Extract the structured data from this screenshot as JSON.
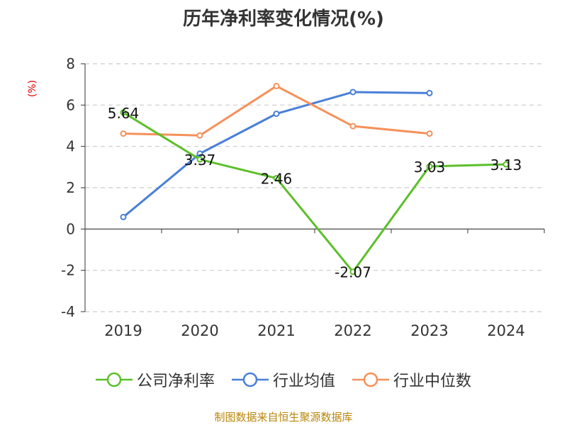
{
  "title": "历年净利率变化情况(%)",
  "unit": "(%)",
  "source": "制图数据来自恒生聚源数据库",
  "chart_data": {
    "type": "line",
    "title": "历年净利率变化情况(%)",
    "ylabel": "(%)",
    "xlabel": "",
    "categories": [
      "2019",
      "2020",
      "2021",
      "2022",
      "2023",
      "2024"
    ],
    "ylim": [
      -4,
      8
    ],
    "yticks": [
      -4,
      -2,
      0,
      2,
      4,
      6,
      8
    ],
    "grid": true,
    "legend": "bottom",
    "series": [
      {
        "name": "公司净利率",
        "color": "#5cbf2a",
        "values": [
          5.64,
          3.37,
          2.46,
          -2.07,
          3.03,
          3.13
        ],
        "labels": [
          "5.64",
          "3.37",
          "2.46",
          "-2.07",
          "3.03",
          "3.13"
        ]
      },
      {
        "name": "行业均值",
        "color": "#4a7fd8",
        "values": [
          0.58,
          3.65,
          5.58,
          6.63,
          6.58,
          null
        ],
        "labels": []
      },
      {
        "name": "行业中位数",
        "color": "#f5915a",
        "values": [
          4.62,
          4.53,
          6.92,
          4.98,
          4.62,
          null
        ],
        "labels": []
      }
    ]
  }
}
